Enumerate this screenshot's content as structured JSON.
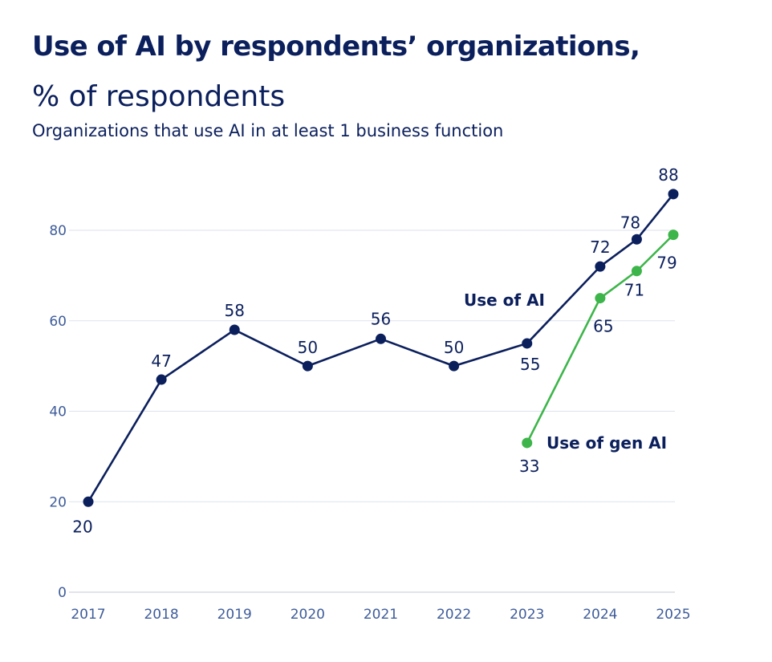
{
  "header": {
    "title": "Use of AI by respondents’ organizations,",
    "unit": "% of respondents",
    "subtitle": "Organizations that use AI in at least 1 business function"
  },
  "chart_data": {
    "type": "line",
    "ylim": [
      0,
      90
    ],
    "yticks": [
      0,
      20,
      40,
      60,
      80
    ],
    "xticks": [
      "2017",
      "2018",
      "2019",
      "2020",
      "2021",
      "2022",
      "2023",
      "2024",
      "2025"
    ],
    "grid": true,
    "series": [
      {
        "name": "Use of AI",
        "color": "#0b1f5c",
        "x": [
          2017,
          2018,
          2019,
          2020,
          2021,
          2022,
          2023,
          2024,
          2024.5,
          2025
        ],
        "values": [
          20,
          47,
          58,
          50,
          56,
          50,
          55,
          72,
          78,
          88
        ]
      },
      {
        "name": "Use of gen AI",
        "color": "#3db54a",
        "x": [
          2023,
          2024,
          2024.5,
          2025
        ],
        "values": [
          33,
          65,
          71,
          79
        ]
      }
    ]
  }
}
